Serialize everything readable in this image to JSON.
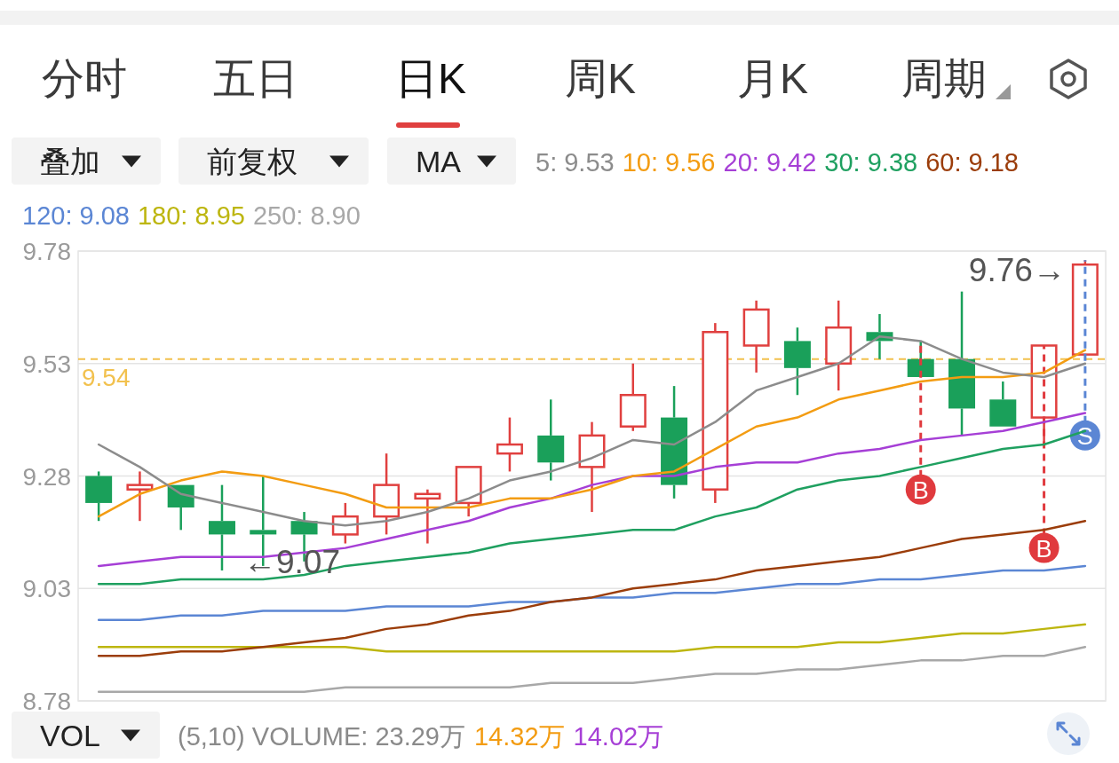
{
  "chart_data": {
    "type": "candlestick",
    "categories": [
      null,
      null,
      null,
      null,
      null,
      null,
      null,
      null,
      null,
      null,
      null,
      null,
      null,
      null,
      null,
      null,
      null,
      null,
      null,
      null,
      null,
      null,
      null,
      null,
      null
    ],
    "ohlc": [
      [
        9.28,
        9.29,
        9.18,
        9.22
      ],
      [
        9.25,
        9.29,
        9.18,
        9.26
      ],
      [
        9.26,
        9.26,
        9.16,
        9.21
      ],
      [
        9.18,
        9.26,
        9.07,
        9.15
      ],
      [
        9.16,
        9.28,
        9.08,
        9.15
      ],
      [
        9.18,
        9.2,
        9.09,
        9.15
      ],
      [
        9.15,
        9.22,
        9.13,
        9.19
      ],
      [
        9.19,
        9.33,
        9.15,
        9.26
      ],
      [
        9.23,
        9.25,
        9.13,
        9.24
      ],
      [
        9.22,
        9.3,
        9.19,
        9.3
      ],
      [
        9.33,
        9.41,
        9.29,
        9.35
      ],
      [
        9.37,
        9.45,
        9.27,
        9.31
      ],
      [
        9.3,
        9.4,
        9.2,
        9.37
      ],
      [
        9.39,
        9.53,
        9.38,
        9.46
      ],
      [
        9.41,
        9.48,
        9.23,
        9.26
      ],
      [
        9.25,
        9.62,
        9.22,
        9.6
      ],
      [
        9.57,
        9.67,
        9.51,
        9.65
      ],
      [
        9.58,
        9.61,
        9.46,
        9.52
      ],
      [
        9.53,
        9.67,
        9.47,
        9.61
      ],
      [
        9.6,
        9.64,
        9.54,
        9.58
      ],
      [
        9.54,
        9.58,
        9.5,
        9.5
      ],
      [
        9.54,
        9.69,
        9.37,
        9.43
      ],
      [
        9.45,
        9.49,
        9.39,
        9.39
      ],
      [
        9.41,
        9.57,
        9.35,
        9.57
      ],
      [
        9.55,
        9.76,
        9.55,
        9.75
      ]
    ],
    "series": [
      {
        "type": "line",
        "name": "5: 9.53",
        "color": "#8c8c8c",
        "values": [
          9.35,
          9.3,
          9.24,
          9.22,
          9.2,
          9.18,
          9.17,
          9.18,
          9.2,
          9.23,
          9.27,
          9.29,
          9.32,
          9.36,
          9.35,
          9.4,
          9.47,
          9.5,
          9.53,
          9.59,
          9.58,
          9.54,
          9.51,
          9.5,
          9.53
        ]
      },
      {
        "type": "line",
        "name": "10: 9.56",
        "color": "#f39c12",
        "values": [
          9.19,
          9.24,
          9.27,
          9.29,
          9.28,
          9.26,
          9.24,
          9.21,
          9.21,
          9.21,
          9.23,
          9.23,
          9.25,
          9.28,
          9.29,
          9.34,
          9.39,
          9.41,
          9.45,
          9.47,
          9.49,
          9.5,
          9.5,
          9.51,
          9.56
        ]
      },
      {
        "type": "line",
        "name": "20: 9.42",
        "color": "#a63fd6",
        "values": [
          9.08,
          9.09,
          9.1,
          9.1,
          9.1,
          9.11,
          9.12,
          9.14,
          9.16,
          9.18,
          9.21,
          9.23,
          9.26,
          9.28,
          9.28,
          9.3,
          9.31,
          9.31,
          9.33,
          9.34,
          9.36,
          9.37,
          9.38,
          9.4,
          9.42
        ]
      },
      {
        "type": "line",
        "name": "30: 9.38",
        "color": "#1fa060",
        "values": [
          9.04,
          9.04,
          9.05,
          9.05,
          9.05,
          9.06,
          9.08,
          9.09,
          9.1,
          9.11,
          9.13,
          9.14,
          9.15,
          9.16,
          9.16,
          9.19,
          9.21,
          9.25,
          9.27,
          9.28,
          9.3,
          9.32,
          9.34,
          9.35,
          9.38
        ]
      },
      {
        "type": "line",
        "name": "60: 9.18",
        "color": "#9b3d0a",
        "values": [
          8.88,
          8.88,
          8.89,
          8.89,
          8.9,
          8.91,
          8.92,
          8.94,
          8.95,
          8.97,
          8.98,
          9.0,
          9.01,
          9.03,
          9.04,
          9.05,
          9.07,
          9.08,
          9.09,
          9.1,
          9.12,
          9.14,
          9.15,
          9.16,
          9.18
        ]
      },
      {
        "type": "line",
        "name": "120: 9.08",
        "color": "#5b86d4",
        "values": [
          8.96,
          8.96,
          8.97,
          8.97,
          8.98,
          8.98,
          8.98,
          8.99,
          8.99,
          8.99,
          9.0,
          9.0,
          9.01,
          9.01,
          9.02,
          9.02,
          9.03,
          9.04,
          9.04,
          9.05,
          9.05,
          9.06,
          9.07,
          9.07,
          9.08
        ]
      },
      {
        "type": "line",
        "name": "180: 8.95",
        "color": "#bdb610",
        "values": [
          8.9,
          8.9,
          8.9,
          8.9,
          8.9,
          8.9,
          8.9,
          8.89,
          8.89,
          8.89,
          8.89,
          8.89,
          8.89,
          8.89,
          8.89,
          8.9,
          8.9,
          8.9,
          8.91,
          8.91,
          8.92,
          8.93,
          8.93,
          8.94,
          8.95
        ]
      },
      {
        "type": "line",
        "name": "250: 8.90",
        "color": "#a8a8a8",
        "values": [
          8.8,
          8.8,
          8.8,
          8.8,
          8.8,
          8.8,
          8.81,
          8.81,
          8.81,
          8.81,
          8.81,
          8.82,
          8.82,
          8.82,
          8.83,
          8.84,
          8.84,
          8.85,
          8.85,
          8.86,
          8.87,
          8.87,
          8.88,
          8.88,
          8.9
        ]
      },
      {
        "type": "scatter",
        "color": "#e03a3e",
        "marker": "circle",
        "values": [
          null,
          null,
          null,
          null,
          null,
          null,
          null,
          null,
          null,
          null,
          null,
          null,
          null,
          null,
          null,
          null,
          null,
          null,
          null,
          null,
          9.25,
          null,
          null,
          9.12,
          null
        ],
        "value_labels": [
          null,
          null,
          null,
          null,
          null,
          null,
          null,
          null,
          null,
          null,
          null,
          null,
          null,
          null,
          null,
          null,
          null,
          null,
          null,
          null,
          "B",
          null,
          null,
          "B",
          null
        ]
      },
      {
        "type": "scatter",
        "color": "#5b86d4",
        "marker": "circle",
        "values": [
          null,
          null,
          null,
          null,
          null,
          null,
          null,
          null,
          null,
          null,
          null,
          null,
          null,
          null,
          null,
          null,
          null,
          null,
          null,
          null,
          null,
          null,
          null,
          null,
          9.37
        ],
        "value_labels": [
          null,
          null,
          null,
          null,
          null,
          null,
          null,
          null,
          null,
          null,
          null,
          null,
          null,
          null,
          null,
          null,
          null,
          null,
          null,
          null,
          null,
          null,
          null,
          null,
          "S"
        ]
      }
    ],
    "ylim": [
      8.78,
      9.78
    ],
    "yticks": [
      9.78,
      9.53,
      9.28,
      9.03,
      8.78
    ],
    "grid": "y",
    "tick_labels": "y",
    "legend": "top",
    "ref_lines": [
      {
        "axis": "y",
        "value": 9.54,
        "label": "9.54",
        "color": "#f2c14e",
        "line_style": "dashed"
      }
    ],
    "annotations": [
      "分时",
      "五日",
      "日K",
      "周K",
      "月K",
      "周期",
      "叠加",
      "前复权",
      "MA",
      "VOL",
      "(5,10) VOLUME: 23.29万",
      "14.32万",
      "14.02万",
      "9.76→",
      "←9.07"
    ]
  }
}
